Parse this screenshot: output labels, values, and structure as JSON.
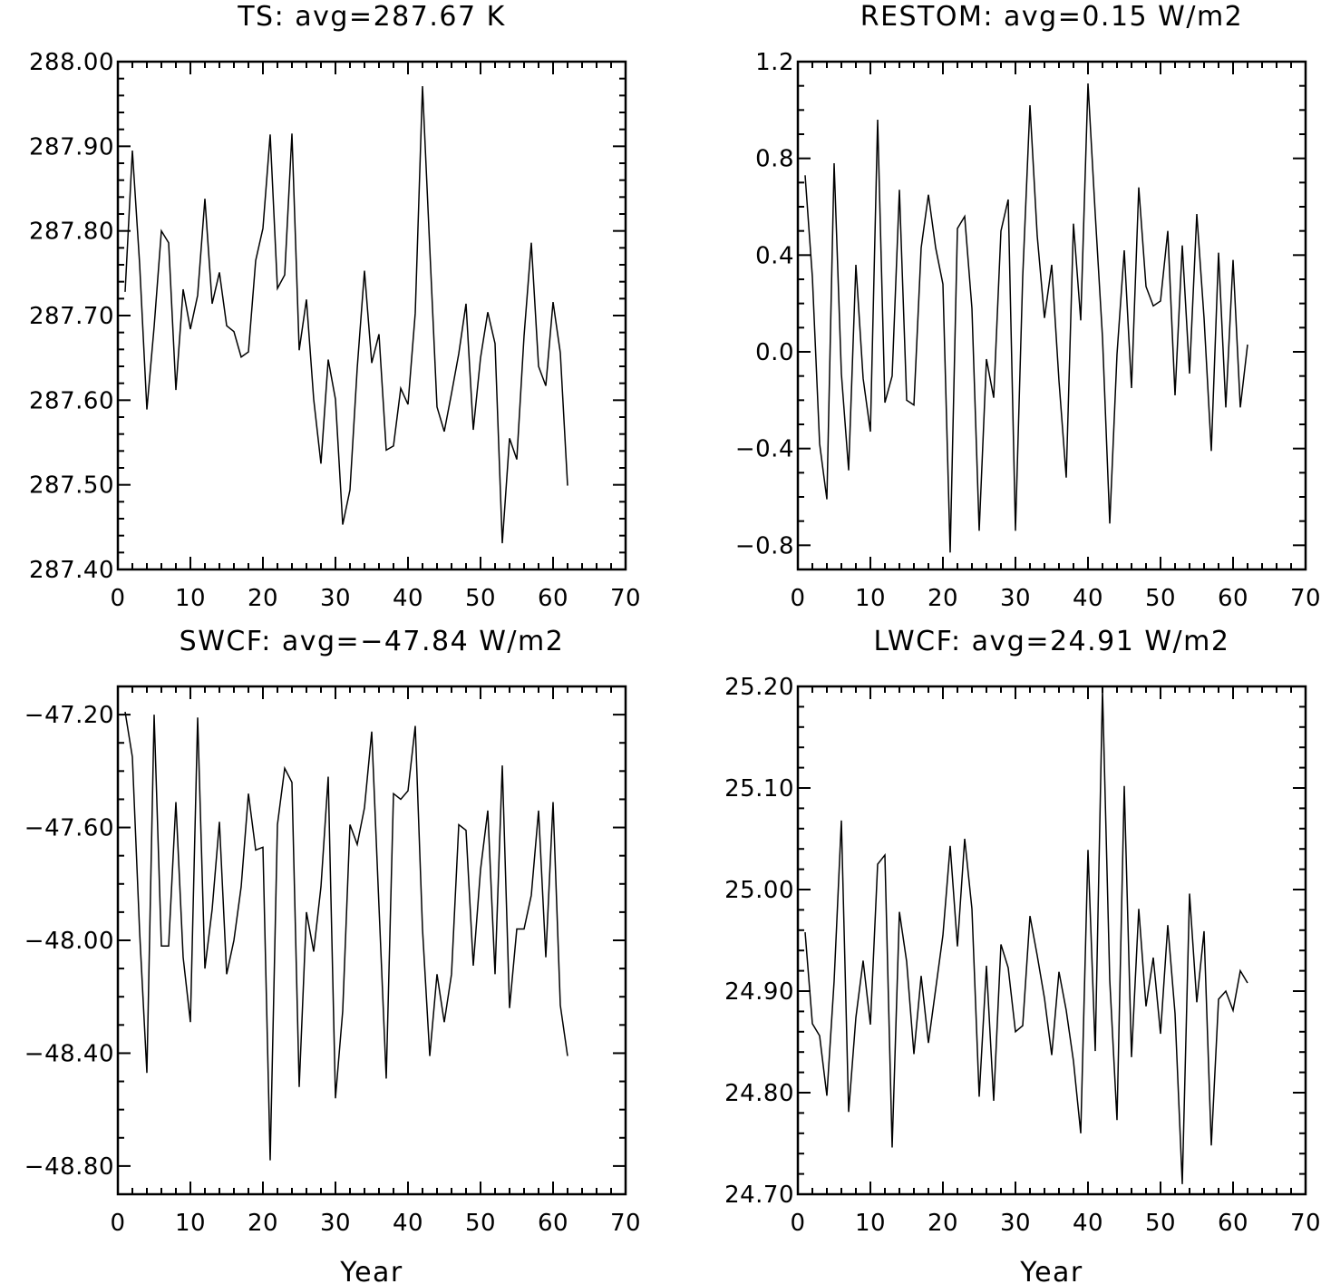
{
  "chart_data": [
    {
      "type": "line",
      "title": "TS: avg=287.67 K",
      "xlabel": "",
      "ylabel": "",
      "xlim": [
        0,
        70
      ],
      "ylim": [
        287.4,
        288.0
      ],
      "xticks": [
        0,
        10,
        20,
        30,
        40,
        50,
        60,
        70
      ],
      "xtick_labels": [
        "0",
        "10",
        "20",
        "30",
        "40",
        "50",
        "60",
        "70"
      ],
      "yticks": [
        287.4,
        287.5,
        287.6,
        287.7,
        287.8,
        287.9,
        288.0
      ],
      "ytick_labels": [
        "287.40",
        "287.50",
        "287.60",
        "287.70",
        "287.80",
        "287.90",
        "288.00"
      ],
      "y_minor_step": 0.02,
      "x_minor_step": 2,
      "x": [
        1,
        2,
        3,
        4,
        5,
        6,
        7,
        8,
        9,
        10,
        11,
        12,
        13,
        14,
        15,
        16,
        17,
        18,
        19,
        20,
        21,
        22,
        23,
        24,
        25,
        26,
        27,
        28,
        29,
        30,
        31,
        32,
        33,
        34,
        35,
        36,
        37,
        38,
        39,
        40,
        41,
        42,
        43,
        44,
        45,
        46,
        47,
        48,
        49,
        50,
        51,
        52,
        53,
        54,
        55,
        56,
        57,
        58,
        59,
        60,
        61,
        62
      ],
      "values": [
        287.728,
        287.895,
        287.761,
        287.589,
        287.687,
        287.8,
        287.786,
        287.612,
        287.731,
        287.684,
        287.724,
        287.838,
        287.714,
        287.751,
        287.688,
        287.681,
        287.651,
        287.657,
        287.765,
        287.803,
        287.914,
        287.732,
        287.748,
        287.915,
        287.659,
        287.719,
        287.601,
        287.525,
        287.648,
        287.601,
        287.453,
        287.494,
        287.638,
        287.753,
        287.644,
        287.678,
        287.541,
        287.546,
        287.614,
        287.595,
        287.703,
        287.971,
        287.78,
        287.592,
        287.563,
        287.608,
        287.655,
        287.714,
        287.565,
        287.65,
        287.704,
        287.667,
        287.431,
        287.555,
        287.53,
        287.676,
        287.786,
        287.64,
        287.617,
        287.716,
        287.656,
        287.499
      ]
    },
    {
      "type": "line",
      "title": "RESTOM: avg=0.15 W/m2",
      "xlabel": "",
      "ylabel": "",
      "xlim": [
        0,
        70
      ],
      "ylim": [
        -0.9,
        1.2
      ],
      "xticks": [
        0,
        10,
        20,
        30,
        40,
        50,
        60,
        70
      ],
      "xtick_labels": [
        "0",
        "10",
        "20",
        "30",
        "40",
        "50",
        "60",
        "70"
      ],
      "yticks": [
        -0.8,
        -0.4,
        0.0,
        0.4,
        0.8,
        1.2
      ],
      "ytick_labels": [
        "−0.8",
        "−0.4",
        "0.0",
        "0.4",
        "0.8",
        "1.2"
      ],
      "y_minor_step": 0.1,
      "x_minor_step": 2,
      "x": [
        1,
        2,
        3,
        4,
        5,
        6,
        7,
        8,
        9,
        10,
        11,
        12,
        13,
        14,
        15,
        16,
        17,
        18,
        19,
        20,
        21,
        22,
        23,
        24,
        25,
        26,
        27,
        28,
        29,
        30,
        31,
        32,
        33,
        34,
        35,
        36,
        37,
        38,
        39,
        40,
        41,
        42,
        43,
        44,
        45,
        46,
        47,
        48,
        49,
        50,
        51,
        52,
        53,
        54,
        55,
        56,
        57,
        58,
        59,
        60,
        61,
        62
      ],
      "values": [
        0.73,
        0.31,
        -0.38,
        -0.61,
        0.78,
        -0.09,
        -0.49,
        0.36,
        -0.11,
        -0.33,
        0.96,
        -0.21,
        -0.1,
        0.67,
        -0.2,
        -0.22,
        0.43,
        0.65,
        0.43,
        0.28,
        -0.83,
        0.51,
        0.56,
        0.18,
        -0.74,
        -0.03,
        -0.19,
        0.5,
        0.63,
        -0.74,
        0.31,
        1.02,
        0.48,
        0.14,
        0.36,
        -0.12,
        -0.52,
        0.53,
        0.13,
        1.11,
        0.57,
        0.06,
        -0.71,
        -0.01,
        0.42,
        -0.15,
        0.68,
        0.27,
        0.19,
        0.21,
        0.5,
        -0.18,
        0.44,
        -0.09,
        0.57,
        0.14,
        -0.41,
        0.41,
        -0.23,
        0.38,
        -0.23,
        0.03
      ]
    },
    {
      "type": "line",
      "title": "SWCF: avg=−47.84 W/m2",
      "xlabel": "Year",
      "ylabel": "",
      "xlim": [
        0,
        70
      ],
      "ylim": [
        -48.9,
        -47.1
      ],
      "xticks": [
        0,
        10,
        20,
        30,
        40,
        50,
        60,
        70
      ],
      "xtick_labels": [
        "0",
        "10",
        "20",
        "30",
        "40",
        "50",
        "60",
        "70"
      ],
      "yticks": [
        -48.8,
        -48.4,
        -48.0,
        -47.6,
        -47.2
      ],
      "ytick_labels": [
        "−48.80",
        "−48.40",
        "−48.00",
        "−47.60",
        "−47.20"
      ],
      "y_minor_step": 0.1,
      "x_minor_step": 2,
      "x": [
        1,
        2,
        3,
        4,
        5,
        6,
        7,
        8,
        9,
        10,
        11,
        12,
        13,
        14,
        15,
        16,
        17,
        18,
        19,
        20,
        21,
        22,
        23,
        24,
        25,
        26,
        27,
        28,
        29,
        30,
        31,
        32,
        33,
        34,
        35,
        36,
        37,
        38,
        39,
        40,
        41,
        42,
        43,
        44,
        45,
        46,
        47,
        48,
        49,
        50,
        51,
        52,
        53,
        54,
        55,
        56,
        57,
        58,
        59,
        60,
        61,
        62
      ],
      "values": [
        -47.19,
        -47.35,
        -47.97,
        -48.47,
        -47.2,
        -48.02,
        -48.02,
        -47.51,
        -48.06,
        -48.29,
        -47.21,
        -48.1,
        -47.89,
        -47.58,
        -48.12,
        -48.0,
        -47.81,
        -47.48,
        -47.68,
        -47.67,
        -48.78,
        -47.59,
        -47.39,
        -47.44,
        -48.52,
        -47.9,
        -48.04,
        -47.81,
        -47.42,
        -48.56,
        -48.25,
        -47.59,
        -47.66,
        -47.53,
        -47.26,
        -47.88,
        -48.49,
        -47.48,
        -47.5,
        -47.47,
        -47.24,
        -47.96,
        -48.41,
        -48.12,
        -48.29,
        -48.12,
        -47.59,
        -47.61,
        -48.09,
        -47.75,
        -47.54,
        -48.12,
        -47.38,
        -48.24,
        -47.96,
        -47.96,
        -47.84,
        -47.54,
        -48.06,
        -47.51,
        -48.23,
        -48.41
      ]
    },
    {
      "type": "line",
      "title": "LWCF: avg=24.91 W/m2",
      "xlabel": "Year",
      "ylabel": "",
      "xlim": [
        0,
        70
      ],
      "ylim": [
        24.7,
        25.2
      ],
      "xticks": [
        0,
        10,
        20,
        30,
        40,
        50,
        60,
        70
      ],
      "xtick_labels": [
        "0",
        "10",
        "20",
        "30",
        "40",
        "50",
        "60",
        "70"
      ],
      "yticks": [
        24.7,
        24.8,
        24.9,
        25.0,
        25.1,
        25.2
      ],
      "ytick_labels": [
        "24.70",
        "24.80",
        "24.90",
        "25.00",
        "25.10",
        "25.20"
      ],
      "y_minor_step": 0.02,
      "x_minor_step": 2,
      "x": [
        1,
        2,
        3,
        4,
        5,
        6,
        7,
        8,
        9,
        10,
        11,
        12,
        13,
        14,
        15,
        16,
        17,
        18,
        19,
        20,
        21,
        22,
        23,
        24,
        25,
        26,
        27,
        28,
        29,
        30,
        31,
        32,
        33,
        34,
        35,
        36,
        37,
        38,
        39,
        40,
        41,
        42,
        43,
        44,
        45,
        46,
        47,
        48,
        49,
        50,
        51,
        52,
        53,
        54,
        55,
        56,
        57,
        58,
        59,
        60,
        61,
        62
      ],
      "values": [
        24.958,
        24.868,
        24.856,
        24.797,
        24.91,
        25.068,
        24.781,
        24.874,
        24.93,
        24.867,
        25.025,
        25.034,
        24.746,
        24.978,
        24.929,
        24.838,
        24.915,
        24.849,
        24.902,
        24.955,
        25.043,
        24.944,
        25.05,
        24.981,
        24.796,
        24.925,
        24.792,
        24.946,
        24.923,
        24.86,
        24.866,
        24.974,
        24.935,
        24.893,
        24.837,
        24.919,
        24.881,
        24.831,
        24.76,
        25.039,
        24.841,
        25.197,
        24.911,
        24.773,
        25.102,
        24.835,
        24.981,
        24.885,
        24.933,
        24.858,
        24.965,
        24.878,
        24.71,
        24.996,
        24.889,
        24.959,
        24.748,
        24.892,
        24.9,
        24.881,
        24.92,
        24.908
      ]
    }
  ]
}
